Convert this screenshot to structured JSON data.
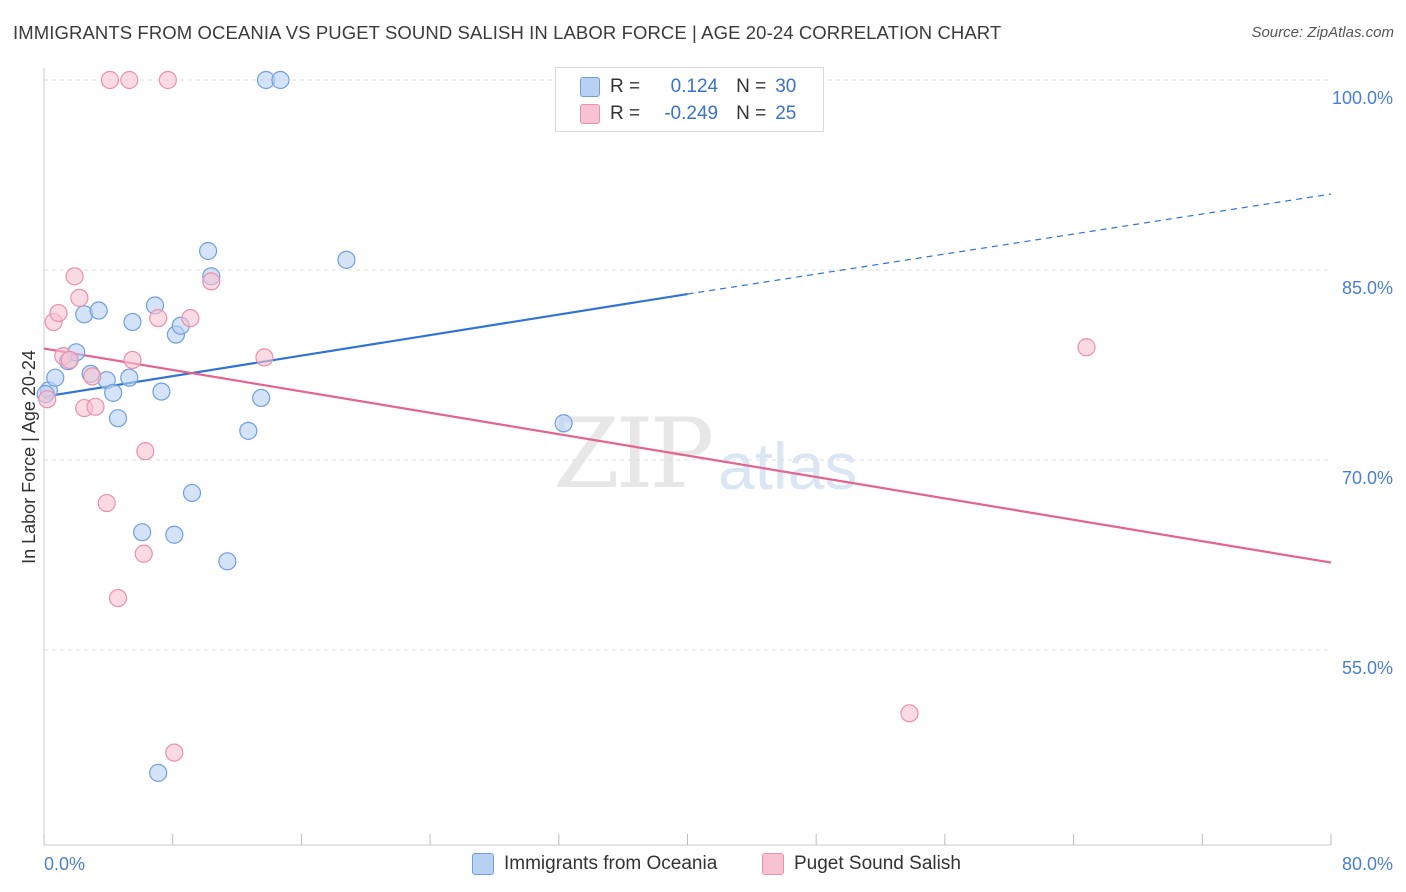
{
  "title": "IMMIGRANTS FROM OCEANIA VS PUGET SOUND SALISH IN LABOR FORCE | AGE 20-24 CORRELATION CHART",
  "source": "Source: ZipAtlas.com",
  "watermark": {
    "zip": "ZIP",
    "atlas": "atlas"
  },
  "colors": {
    "blue_fill": "#b7d1f2",
    "blue_stroke": "#6f9fe0",
    "blue_line": "#2f73d6",
    "pink_fill": "#f7c3d2",
    "pink_stroke": "#ec8fac",
    "pink_line": "#e5648e",
    "tick_text": "#4a7fcf",
    "grid": "#dddddd"
  },
  "legend": {
    "r_label": "R =",
    "n_label": "N =",
    "rows": [
      {
        "r": "0.124",
        "n": "30",
        "swatch": "blue"
      },
      {
        "r": "-0.249",
        "n": "25",
        "swatch": "pink"
      }
    ]
  },
  "bottom_legend": [
    "Immigrants from Oceania",
    "Puget Sound Salish"
  ],
  "chart_data": {
    "type": "scatter",
    "xlabel": "",
    "ylabel": "In Labor Force | Age 20-24",
    "xlim": [
      0,
      80
    ],
    "ylim": [
      40,
      102
    ],
    "x_tick_labels": [
      "0.0%",
      "80.0%"
    ],
    "y_ticks": [
      100,
      85,
      70,
      55
    ],
    "y_tick_labels": [
      "100.0%",
      "85.0%",
      "70.0%",
      "55.0%"
    ],
    "grid": true,
    "legend_position": "top-center",
    "series": [
      {
        "name": "Immigrants from Oceania",
        "color": "blue",
        "points": [
          [
            0.3,
            75.5
          ],
          [
            0.7,
            76.5
          ],
          [
            1.5,
            77.8
          ],
          [
            2.0,
            78.5
          ],
          [
            2.5,
            81.5
          ],
          [
            2.9,
            76.8
          ],
          [
            3.4,
            81.8
          ],
          [
            3.9,
            76.3
          ],
          [
            4.3,
            75.3
          ],
          [
            4.6,
            73.3
          ],
          [
            5.3,
            76.5
          ],
          [
            5.5,
            80.9
          ],
          [
            6.1,
            64.3
          ],
          [
            6.9,
            82.2
          ],
          [
            7.1,
            45.3
          ],
          [
            7.3,
            75.4
          ],
          [
            8.1,
            64.1
          ],
          [
            8.2,
            79.9
          ],
          [
            8.5,
            80.6
          ],
          [
            9.2,
            67.4
          ],
          [
            10.2,
            86.5
          ],
          [
            10.4,
            84.5
          ],
          [
            11.4,
            62.0
          ],
          [
            12.7,
            72.3
          ],
          [
            13.5,
            74.9
          ],
          [
            13.8,
            100.0
          ],
          [
            14.7,
            100.0
          ],
          [
            18.8,
            85.8
          ],
          [
            32.3,
            72.9
          ],
          [
            0.1,
            75.2
          ]
        ],
        "trend": {
          "x": [
            0,
            40
          ],
          "y": [
            75.0,
            83.1
          ],
          "dashed_x": [
            40,
            80
          ],
          "dashed_y": [
            83.1,
            91.0
          ]
        }
      },
      {
        "name": "Puget Sound Salish",
        "color": "pink",
        "points": [
          [
            0.2,
            74.8
          ],
          [
            0.6,
            80.9
          ],
          [
            0.9,
            81.6
          ],
          [
            1.2,
            78.2
          ],
          [
            1.6,
            77.9
          ],
          [
            1.9,
            84.5
          ],
          [
            2.2,
            82.8
          ],
          [
            2.5,
            74.1
          ],
          [
            3.0,
            76.6
          ],
          [
            3.2,
            74.2
          ],
          [
            3.9,
            66.6
          ],
          [
            4.1,
            100.0
          ],
          [
            4.6,
            59.1
          ],
          [
            5.3,
            100.0
          ],
          [
            5.5,
            77.9
          ],
          [
            6.2,
            62.6
          ],
          [
            6.3,
            70.7
          ],
          [
            7.1,
            81.2
          ],
          [
            7.7,
            100.0
          ],
          [
            8.1,
            46.9
          ],
          [
            9.1,
            81.2
          ],
          [
            10.4,
            84.1
          ],
          [
            13.7,
            78.1
          ],
          [
            53.8,
            50.0
          ],
          [
            64.8,
            78.9
          ]
        ],
        "trend": {
          "x": [
            0,
            80
          ],
          "y": [
            78.8,
            61.9
          ]
        }
      }
    ]
  }
}
